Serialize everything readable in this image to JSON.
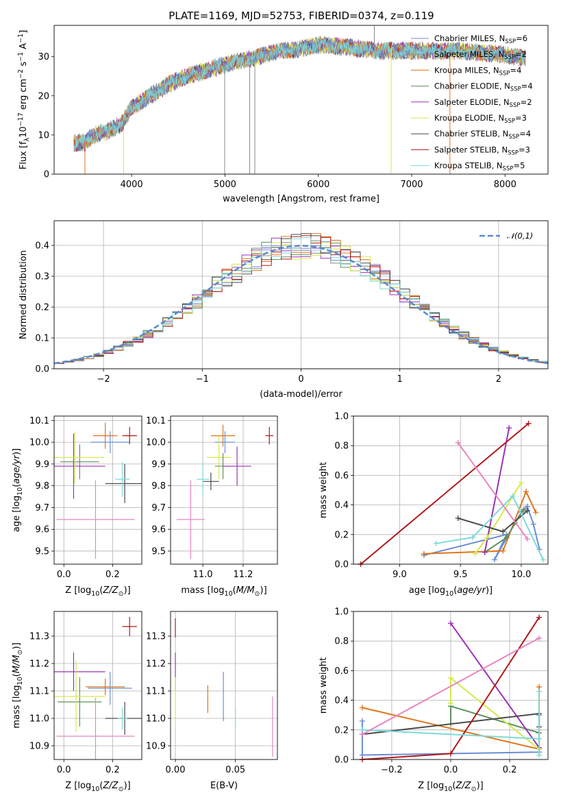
{
  "title": "PLATE=1169, MJD=52753, FIBERID=0374, z=0.119",
  "models": [
    {
      "name": "Chabrier MILES",
      "nssp": 6,
      "color": "#6a8ed6"
    },
    {
      "name": "Salpeter MILES",
      "nssp": 2,
      "color": "#8a8a8a"
    },
    {
      "name": "Kroupa MILES",
      "nssp": 4,
      "color": "#e0741a"
    },
    {
      "name": "Chabrier ELODIE",
      "nssp": 4,
      "color": "#5d8f5d"
    },
    {
      "name": "Salpeter ELODIE",
      "nssp": 2,
      "color": "#9b30b5"
    },
    {
      "name": "Kroupa ELODIE",
      "nssp": 3,
      "color": "#d6e84a"
    },
    {
      "name": "Chabrier STELIB",
      "nssp": 4,
      "color": "#4a4a4a"
    },
    {
      "name": "Salpeter STELIB",
      "nssp": 3,
      "color": "#b01818"
    },
    {
      "name": "Kroupa STELIB",
      "nssp": 5,
      "color": "#7dd9d9"
    }
  ],
  "pink_color": "#e884c0",
  "chart_data": [
    {
      "id": "spectrum",
      "type": "line",
      "xlabel": "wavelength [Angstrom, rest frame]",
      "ylabel": "Flux [f_λ10^-17 erg cm^-2 s^-1 A^-1]",
      "xlim": [
        3170,
        8460
      ],
      "ylim": [
        0,
        38
      ],
      "xticks": [
        4000,
        5000,
        6000,
        7000,
        8000
      ],
      "yticks": [
        0,
        10,
        20,
        30
      ],
      "continuum": [
        [
          3380,
          8
        ],
        [
          3500,
          8
        ],
        [
          3600,
          10
        ],
        [
          3750,
          11
        ],
        [
          3900,
          13
        ],
        [
          4000,
          17
        ],
        [
          4200,
          20
        ],
        [
          4400,
          23
        ],
        [
          4600,
          25
        ],
        [
          4800,
          26.5
        ],
        [
          5000,
          28
        ],
        [
          5200,
          29
        ],
        [
          5500,
          31
        ],
        [
          5800,
          32
        ],
        [
          6000,
          33
        ],
        [
          6300,
          32.5
        ],
        [
          6600,
          31.5
        ],
        [
          7000,
          31.5
        ],
        [
          7500,
          31.5
        ],
        [
          8000,
          30.5
        ],
        [
          8220,
          29.5
        ]
      ],
      "spikes": [
        {
          "x": 3500,
          "y1": 0,
          "y2": 8,
          "color": "#e0741a"
        },
        {
          "x": 3915,
          "y1": 0,
          "y2": 11,
          "color": "#d6e84a"
        },
        {
          "x": 4997,
          "y1": 0,
          "y2": 28,
          "color": "#8a8a8a"
        },
        {
          "x": 5265,
          "y1": 0,
          "y2": 28,
          "color": "#8a8a8a"
        },
        {
          "x": 5320,
          "y1": 0,
          "y2": 29,
          "color": "#8a8a8a"
        },
        {
          "x": 6780,
          "y1": 0,
          "y2": 32,
          "color": "#d6e84a"
        },
        {
          "x": 7410,
          "y1": 0,
          "y2": 31,
          "color": "#e0741a"
        },
        {
          "x": 6600,
          "y1": 31,
          "y2": 38,
          "color": "#8a8a8a"
        }
      ]
    },
    {
      "id": "residuals",
      "type": "histogram",
      "xlabel": "(data-model)/error",
      "ylabel": "Normed distribution",
      "xlim": [
        -2.5,
        2.5
      ],
      "ylim": [
        0,
        0.48
      ],
      "xticks": [
        -2,
        -1,
        0,
        1,
        2
      ],
      "yticks": [
        0.0,
        0.1,
        0.2,
        0.3,
        0.4
      ],
      "bin_width": 0.1,
      "reference_label": "𝒩(0,1)",
      "reference_color": "#5b8ad0"
    },
    {
      "id": "z-age",
      "type": "scatter",
      "xlabel": "Z [log10(Z/Z⊙)]",
      "ylabel": "age [log10(age/yr)]",
      "xlim": [
        -0.04,
        0.32
      ],
      "ylim": [
        9.44,
        10.12
      ],
      "xticks": [
        0.0,
        0.2
      ],
      "yticks": [
        9.5,
        9.6,
        9.7,
        9.8,
        9.9,
        10.0,
        10.1
      ],
      "points": [
        {
          "x": 0.19,
          "y": 10.0,
          "xerr": 0.08,
          "yerr": 0.05,
          "color": "#6a8ed6"
        },
        {
          "x": 0.17,
          "y": 10.03,
          "xerr": 0.05,
          "yerr": 0.06,
          "color": "#e0741a"
        },
        {
          "x": 0.065,
          "y": 9.91,
          "xerr": 0.08,
          "yerr": 0.08,
          "color": "#5d8f5d"
        },
        {
          "x": 0.04,
          "y": 9.89,
          "xerr": 0.13,
          "yerr": 0.15,
          "color": "#9b30b5"
        },
        {
          "x": 0.045,
          "y": 9.93,
          "xerr": 0.12,
          "yerr": 0.12,
          "color": "#d6e84a"
        },
        {
          "x": 0.25,
          "y": 9.81,
          "xerr": 0.08,
          "yerr": 0.09,
          "color": "#4a4a4a"
        },
        {
          "x": 0.27,
          "y": 10.03,
          "xerr": 0.03,
          "yerr": 0.04,
          "color": "#b01818"
        },
        {
          "x": 0.24,
          "y": 9.83,
          "xerr": 0.03,
          "yerr": 0.08,
          "color": "#7dd9d9"
        },
        {
          "x": 0.13,
          "y": 9.645,
          "xerr": 0.16,
          "yerr": 0.18,
          "color": "#e884c0"
        }
      ]
    },
    {
      "id": "mass-age",
      "type": "scatter",
      "xlabel": "mass [log10(M/M⊙)]",
      "ylabel": "",
      "xlim": [
        10.84,
        11.37
      ],
      "ylim": [
        9.44,
        10.12
      ],
      "xticks": [
        11.0,
        11.2
      ],
      "yticks": [
        9.5,
        9.6,
        9.7,
        9.8,
        9.9,
        10.0,
        10.1
      ],
      "points": [
        {
          "x": 11.04,
          "y": 9.82,
          "xerr": 0.04,
          "yerr": 0.04,
          "color": "#4a4a4a"
        },
        {
          "x": 11.0,
          "y": 9.83,
          "xerr": 0.03,
          "yerr": 0.08,
          "color": "#7dd9d9"
        },
        {
          "x": 11.11,
          "y": 10.0,
          "xerr": 0.05,
          "yerr": 0.05,
          "color": "#6a8ed6"
        },
        {
          "x": 11.1,
          "y": 10.03,
          "xerr": 0.06,
          "yerr": 0.05,
          "color": "#e0741a"
        },
        {
          "x": 11.08,
          "y": 9.93,
          "xerr": 0.06,
          "yerr": 0.1,
          "color": "#d6e84a"
        },
        {
          "x": 11.1,
          "y": 9.89,
          "xerr": 0.04,
          "yerr": 0.06,
          "color": "#5d8f5d"
        },
        {
          "x": 11.17,
          "y": 9.89,
          "xerr": 0.07,
          "yerr": 0.09,
          "color": "#9b30b5"
        },
        {
          "x": 11.33,
          "y": 10.03,
          "xerr": 0.02,
          "yerr": 0.04,
          "color": "#b01818"
        },
        {
          "x": 10.94,
          "y": 9.645,
          "xerr": 0.07,
          "yerr": 0.18,
          "color": "#e884c0"
        }
      ]
    },
    {
      "id": "age-weight",
      "type": "line",
      "xlabel": "age [log10(age/yr)]",
      "ylabel": "mass weight",
      "xlim": [
        8.62,
        10.22
      ],
      "ylim": [
        0,
        1.0
      ],
      "xticks": [
        9.0,
        9.5,
        10.0
      ],
      "yticks": [
        0.0,
        0.2,
        0.4,
        0.6,
        0.8,
        1.0
      ],
      "series": [
        {
          "color": "#6a8ed6",
          "x": [
            9.2,
            9.88,
            9.78,
            10.0,
            10.05,
            10.1,
            10.15
          ],
          "y": [
            0.06,
            0.2,
            0.03,
            0.35,
            0.39,
            0.27,
            0.1
          ]
        },
        {
          "color": "#e0741a",
          "x": [
            9.2,
            9.85,
            10.04,
            10.12
          ],
          "y": [
            0.07,
            0.09,
            0.49,
            0.35
          ]
        },
        {
          "color": "#5d8f5d",
          "x": [
            9.7,
            9.88,
            9.95,
            10.02
          ],
          "y": [
            0.08,
            0.18,
            0.28,
            0.37
          ]
        },
        {
          "color": "#9b30b5",
          "x": [
            9.7,
            9.9
          ],
          "y": [
            0.08,
            0.92
          ]
        },
        {
          "color": "#d6e84a",
          "x": [
            9.62,
            9.72,
            10.0
          ],
          "y": [
            0.07,
            0.18,
            0.55
          ]
        },
        {
          "color": "#4a4a4a",
          "x": [
            9.48,
            9.85,
            10.05
          ],
          "y": [
            0.31,
            0.22,
            0.36
          ]
        },
        {
          "color": "#b01818",
          "x": [
            8.68,
            10.06
          ],
          "y": [
            0.0,
            0.95
          ]
        },
        {
          "color": "#7dd9d9",
          "x": [
            9.3,
            9.6,
            9.93,
            10.18
          ],
          "y": [
            0.14,
            0.18,
            0.46,
            0.03
          ]
        },
        {
          "color": "#e884c0",
          "x": [
            9.48,
            10.05
          ],
          "y": [
            0.82,
            0.17
          ]
        }
      ]
    },
    {
      "id": "z-mass",
      "type": "scatter",
      "xlabel": "Z [log10(Z/Z⊙)]",
      "ylabel": "mass [log10(M/M⊙)]",
      "xlim": [
        -0.04,
        0.32
      ],
      "ylim": [
        10.85,
        11.39
      ],
      "xticks": [
        0.0,
        0.2
      ],
      "yticks": [
        10.9,
        11.0,
        11.1,
        11.2,
        11.3
      ],
      "points": [
        {
          "x": 0.19,
          "y": 11.11,
          "xerr": 0.09,
          "yerr": 0.06,
          "color": "#6a8ed6"
        },
        {
          "x": 0.17,
          "y": 11.115,
          "xerr": 0.08,
          "yerr": 0.03,
          "color": "#e0741a"
        },
        {
          "x": 0.065,
          "y": 11.06,
          "xerr": 0.09,
          "yerr": 0.09,
          "color": "#5d8f5d"
        },
        {
          "x": 0.04,
          "y": 11.17,
          "xerr": 0.13,
          "yerr": 0.07,
          "color": "#9b30b5"
        },
        {
          "x": 0.05,
          "y": 11.08,
          "xerr": 0.12,
          "yerr": 0.13,
          "color": "#d6e84a"
        },
        {
          "x": 0.25,
          "y": 11.0,
          "xerr": 0.08,
          "yerr": 0.06,
          "color": "#4a4a4a"
        },
        {
          "x": 0.27,
          "y": 11.335,
          "xerr": 0.03,
          "yerr": 0.035,
          "color": "#b01818"
        },
        {
          "x": 0.24,
          "y": 11.0,
          "xerr": 0.02,
          "yerr": 0.04,
          "color": "#7dd9d9"
        },
        {
          "x": 0.13,
          "y": 10.935,
          "xerr": 0.16,
          "yerr": 0.14,
          "color": "#e884c0"
        }
      ]
    },
    {
      "id": "ebv-mass",
      "type": "scatter",
      "xlabel": "E(B-V)",
      "ylabel": "",
      "xlim": [
        -0.004,
        0.085
      ],
      "ylim": [
        10.85,
        11.39
      ],
      "xticks": [
        0.0,
        0.05
      ],
      "yticks": [
        10.9,
        11.0,
        11.1,
        11.2,
        11.3
      ],
      "points": [
        {
          "x": 0.0,
          "y": 11.33,
          "xerr": 0,
          "yerr": 0.035,
          "color": "#b01818"
        },
        {
          "x": 0.0,
          "y": 11.17,
          "xerr": 0,
          "yerr": 0.07,
          "color": "#9b30b5"
        },
        {
          "x": 0.0,
          "y": 11.06,
          "xerr": 0,
          "yerr": 0.09,
          "color": "#d6e84a"
        },
        {
          "x": 0.027,
          "y": 11.07,
          "xerr": 0,
          "yerr": 0.05,
          "color": "#e0741a"
        },
        {
          "x": 0.04,
          "y": 11.08,
          "xerr": 0,
          "yerr": 0.09,
          "color": "#6a8ed6"
        },
        {
          "x": 0.05,
          "y": 11.0,
          "xerr": 0,
          "yerr": 0.04,
          "color": "#7dd9d9"
        },
        {
          "x": 0.081,
          "y": 10.97,
          "xerr": 0,
          "yerr": 0.11,
          "color": "#e884c0"
        }
      ]
    },
    {
      "id": "z-weight",
      "type": "line",
      "xlabel": "Z [log10(Z/Z⊙)]",
      "ylabel": "mass weight",
      "xlim": [
        -0.33,
        0.33
      ],
      "ylim": [
        0,
        1.0
      ],
      "xticks": [
        -0.2,
        0.0,
        0.2
      ],
      "yticks": [
        0.0,
        0.2,
        0.4,
        0.6,
        0.8,
        1.0
      ],
      "series": [
        {
          "color": "#6a8ed6",
          "x": [
            -0.3,
            -0.3,
            0.3,
            0.3
          ],
          "y": [
            0.26,
            0.03,
            0.05,
            0.3
          ]
        },
        {
          "color": "#e0741a",
          "x": [
            -0.3,
            0.3,
            0.3
          ],
          "y": [
            0.35,
            0.07,
            0.49
          ]
        },
        {
          "color": "#5d8f5d",
          "x": [
            0.0,
            0.0,
            0.3
          ],
          "y": [
            0.24,
            0.36,
            0.18
          ]
        },
        {
          "color": "#9b30b5",
          "x": [
            0.0,
            0.3
          ],
          "y": [
            0.92,
            0.08
          ]
        },
        {
          "color": "#d6e84a",
          "x": [
            0.0,
            0.0,
            0.3
          ],
          "y": [
            0.38,
            0.55,
            0.07
          ]
        },
        {
          "color": "#4a4a4a",
          "x": [
            -0.3,
            0.3,
            0.3
          ],
          "y": [
            0.17,
            0.31,
            0.22
          ]
        },
        {
          "color": "#b01818",
          "x": [
            -0.3,
            0.0,
            0.3
          ],
          "y": [
            0.0,
            0.04,
            0.96
          ]
        },
        {
          "color": "#7dd9d9",
          "x": [
            -0.3,
            0.3,
            0.3,
            0.3
          ],
          "y": [
            0.2,
            0.14,
            0.46,
            0.03
          ]
        },
        {
          "color": "#e884c0",
          "x": [
            -0.3,
            0.3
          ],
          "y": [
            0.17,
            0.82
          ]
        }
      ]
    }
  ]
}
